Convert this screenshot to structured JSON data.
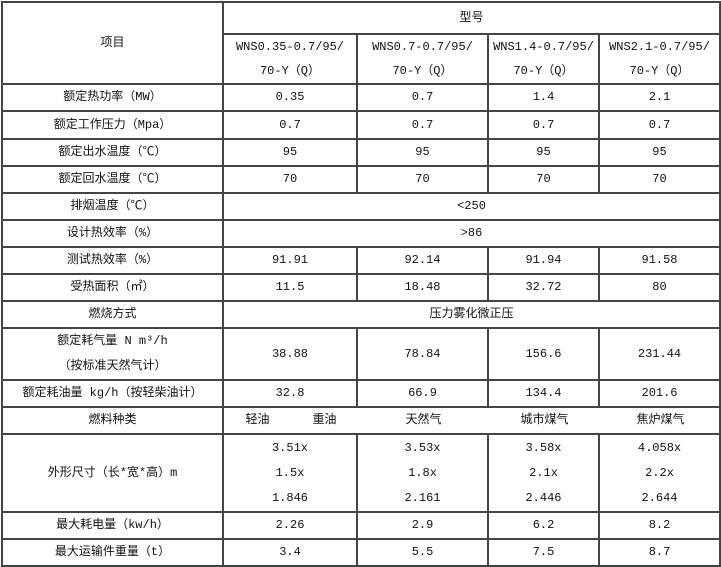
{
  "header": {
    "item_label": "项目",
    "model_label": "型号",
    "models": [
      [
        "WNS0.35-0.7/95/",
        "70-Y（Q）"
      ],
      [
        "WNS0.7-0.7/95/",
        "70-Y（Q）"
      ],
      [
        "WNS1.4-0.7/95/",
        "70-Y（Q）"
      ],
      [
        "WNS2.1-0.7/95/",
        "70-Y（Q）"
      ]
    ]
  },
  "rows": [
    {
      "label": "额定热功率（MW）",
      "values": [
        "0.35",
        "0.7",
        "1.4",
        "2.1"
      ]
    },
    {
      "label": "额定工作压力（Mpa）",
      "values": [
        "0.7",
        "0.7",
        "0.7",
        "0.7"
      ]
    },
    {
      "label": "额定出水温度（℃）",
      "values": [
        "95",
        "95",
        "95",
        "95"
      ]
    },
    {
      "label": "额定回水温度（℃）",
      "values": [
        "70",
        "70",
        "70",
        "70"
      ]
    },
    {
      "label": "排烟温度（℃）",
      "merged": "<250"
    },
    {
      "label": "设计热效率（%）",
      "merged": ">86"
    },
    {
      "label": "测试热效率（%）",
      "values": [
        "91.91",
        "92.14",
        "91.94",
        "91.58"
      ]
    },
    {
      "label": "受热面积（㎡）",
      "values": [
        "11.5",
        "18.48",
        "32.72",
        "80"
      ]
    },
    {
      "label": "燃烧方式",
      "merged": "压力雾化微正压"
    },
    {
      "label": [
        "额定耗气量 N m³/h",
        "（按标准天然气计）"
      ],
      "values": [
        "38.88",
        "78.84",
        "156.6",
        "231.44"
      ]
    },
    {
      "label": "额定耗油量 kg/h（按轻柴油计）",
      "values": [
        "32.8",
        "66.9",
        "134.4",
        "201.6"
      ]
    },
    {
      "label": "燃料种类",
      "fuels": [
        "轻油",
        "重油",
        "天然气",
        "城市煤气",
        "焦炉煤气"
      ]
    },
    {
      "label": "外形尺寸（长*宽*高）m",
      "dims": [
        [
          "3.51x",
          "1.5x",
          "1.846"
        ],
        [
          "3.53x",
          "1.8x",
          "2.161"
        ],
        [
          "3.58x",
          "2.1x",
          "2.446"
        ],
        [
          "4.058x",
          "2.2x",
          "2.644"
        ]
      ]
    },
    {
      "label": "最大耗电量（kw/h）",
      "values": [
        "2.26",
        "2.9",
        "6.2",
        "8.2"
      ]
    },
    {
      "label": "最大运输件重量（t）",
      "values": [
        "3.4",
        "5.5",
        "7.5",
        "8.7"
      ]
    }
  ]
}
